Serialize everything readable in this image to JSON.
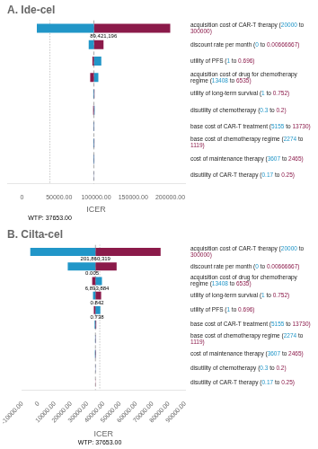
{
  "chart_data": [
    {
      "type": "bar",
      "orientation": "horizontal",
      "title": "A. Ide-cel",
      "x_label": "ICER",
      "categories": [
        "acquisition cost of CAR-T therapy (20000 to 300000)",
        "discount rate per month (0 to 0.00666667)",
        "utility of PFS (1 to 0.696)",
        "acquisition cost of drug for chemotherapy regime (13408 to 6535)",
        "utility of long-term survival (1 to 0.752)",
        "disutility of chemotherapy (0.3 to 0.2)",
        "base cost of CAR-T treatment (5155 to 13730)",
        "base cost of chemotherapy regime (2274 to 1119)",
        "cost of maintenance therapy (3607 to 2465)",
        "disutility of CAR-T therapy (0.17 to 0.25)"
      ],
      "base_value": 97000,
      "series": [
        {
          "values": [
            20000,
            90000,
            95000,
            92000,
            96200,
            96000,
            96500,
            96300,
            96400,
            96800
          ],
          "colors": [
            "#2196c8",
            "#2196c8",
            "#8b1a4a",
            "#8b1a4a",
            "#2196c8",
            "#8b1a4a",
            "#2196c8",
            "#2196c8",
            "#2196c8",
            "#2196c8"
          ]
        },
        {
          "values": [
            200000,
            110000,
            107000,
            103000,
            97800,
            98000,
            97500,
            97700,
            97600,
            97200
          ],
          "colors": [
            "#8b1a4a",
            "#8b1a4a",
            "#2196c8",
            "#2196c8",
            "#8b1a4a",
            "#2196c8",
            "#8b1a4a",
            "#8b1a4a",
            "#8b1a4a",
            "#8b1a4a"
          ]
        }
      ],
      "range_colors": [
        "#2196c8",
        "#8b1a4a"
      ],
      "bar_annotations": [
        "89,421,196",
        null,
        null,
        null,
        null,
        null,
        null,
        null,
        null,
        null
      ],
      "wtp": {
        "value": 37653.0,
        "label": "WTP: 37653.00"
      },
      "xlim": [
        -20000,
        220000
      ],
      "xticks": [
        0,
        {
          "value": 50000,
          "label": "50000.00"
        },
        {
          "value": 100000,
          "label": "100000.00"
        },
        {
          "value": 150000,
          "label": "150000.00"
        },
        {
          "value": 200000,
          "label": "200000.00"
        }
      ],
      "grid": false,
      "tick_labels": "x"
    },
    {
      "type": "bar",
      "orientation": "horizontal",
      "title": "B. Cilta-cel",
      "x_label": "ICER",
      "categories": [
        "acquisition cost of CAR-T therapy (20000 to 300000)",
        "discount rate per month (0 to 0.00666667)",
        "acquisition cost of drug for chemotherapy regime (13408 to 6535)",
        "utility of long-term survival (1 to 0.752)",
        "utility of PFS (1 to 0.696)",
        "base cost of CAR-T treatment (5155 to 13730)",
        "base cost of chemotherapy regime (2274 to 1119)",
        "cost of maintenance therapy (3607 to 2465)",
        "disutility of chemotherapy (0.3 to 0.2)",
        "disutility of CAR-T therapy (0.17 to 0.25)"
      ],
      "base_value": 35000,
      "series": [
        {
          "values": [
            -5000,
            18000,
            33000,
            33500,
            34000,
            34500,
            34800,
            34700,
            34900,
            35000
          ],
          "colors": [
            "#2196c8",
            "#2196c8",
            "#8b1a4a",
            "#2196c8",
            "#8b1a4a",
            "#2196c8",
            "#2196c8",
            "#2196c8",
            "#2196c8",
            "#2196c8"
          ]
        },
        {
          "values": [
            75000,
            48000,
            39000,
            38500,
            38000,
            35500,
            35200,
            35300,
            35100,
            35100
          ],
          "colors": [
            "#8b1a4a",
            "#8b1a4a",
            "#2196c8",
            "#8b1a4a",
            "#2196c8",
            "#8b1a4a",
            "#8b1a4a",
            "#8b1a4a",
            "#8b1a4a",
            "#8b1a4a"
          ]
        }
      ],
      "range_colors": [
        "#2196c8",
        "#8b1a4a"
      ],
      "bar_annotations": [
        "201,860,319",
        "0.005",
        "6,893,884",
        "0.842",
        "0.738",
        null,
        null,
        null,
        null,
        null
      ],
      "wtp": {
        "value": 37653.0,
        "label": "WTP: 37653.00"
      },
      "xlim": [
        -10000,
        90000
      ],
      "xticks": [
        {
          "value": -10000,
          "label": "-10000.00"
        },
        0,
        {
          "value": 10000,
          "label": "10000.00"
        },
        {
          "value": 20000,
          "label": "20000.00"
        },
        {
          "value": 30000,
          "label": "30000.00"
        },
        {
          "value": 40000,
          "label": "40000.00"
        },
        {
          "value": 50000,
          "label": "50000.00"
        },
        {
          "value": 60000,
          "label": "60000.00"
        },
        {
          "value": 70000,
          "label": "70000.00"
        },
        {
          "value": 80000,
          "label": "80000.00"
        },
        {
          "value": 90000,
          "label": "90000.00"
        }
      ],
      "grid": false,
      "tick_labels": "x"
    }
  ]
}
